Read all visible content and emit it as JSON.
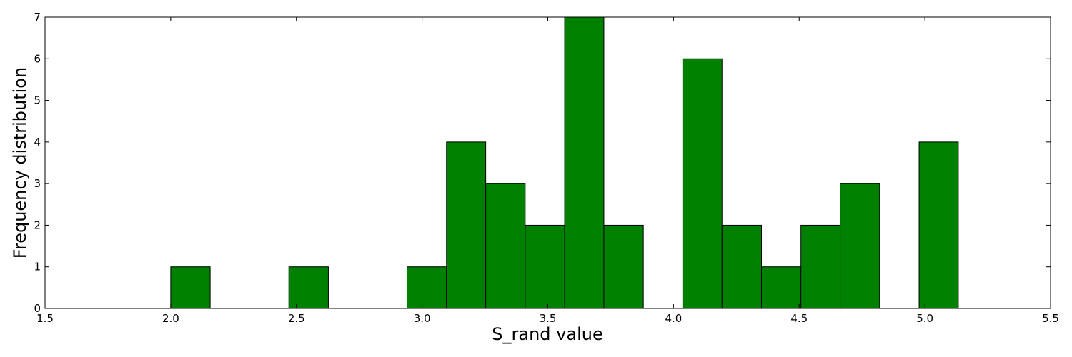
{
  "chart_data": {
    "type": "bar",
    "title": "",
    "xlabel": "S_rand value",
    "ylabel": "Frequency distribution",
    "xlim": [
      1.5,
      5.5
    ],
    "ylim": [
      0,
      7
    ],
    "x_ticks": [
      "1.5",
      "2.0",
      "2.5",
      "3.0",
      "3.5",
      "4.0",
      "4.5",
      "5.0",
      "5.5"
    ],
    "y_ticks": [
      "0",
      "1",
      "2",
      "3",
      "4",
      "5",
      "6",
      "7"
    ],
    "bar_color": "#008000",
    "edge_color": "#000000",
    "grid": false,
    "legend": "none",
    "bins": [
      {
        "start": 2.0,
        "end": 2.157,
        "count": 1
      },
      {
        "start": 2.157,
        "end": 2.313,
        "count": 0
      },
      {
        "start": 2.313,
        "end": 2.47,
        "count": 0
      },
      {
        "start": 2.47,
        "end": 2.627,
        "count": 1
      },
      {
        "start": 2.627,
        "end": 2.783,
        "count": 0
      },
      {
        "start": 2.783,
        "end": 2.94,
        "count": 0
      },
      {
        "start": 2.94,
        "end": 3.097,
        "count": 1
      },
      {
        "start": 3.097,
        "end": 3.253,
        "count": 4
      },
      {
        "start": 3.253,
        "end": 3.41,
        "count": 3
      },
      {
        "start": 3.41,
        "end": 3.567,
        "count": 2
      },
      {
        "start": 3.567,
        "end": 3.723,
        "count": 7
      },
      {
        "start": 3.723,
        "end": 3.88,
        "count": 2
      },
      {
        "start": 3.88,
        "end": 4.037,
        "count": 0
      },
      {
        "start": 4.037,
        "end": 4.193,
        "count": 6
      },
      {
        "start": 4.193,
        "end": 4.35,
        "count": 2
      },
      {
        "start": 4.35,
        "end": 4.507,
        "count": 1
      },
      {
        "start": 4.507,
        "end": 4.663,
        "count": 2
      },
      {
        "start": 4.663,
        "end": 4.82,
        "count": 3
      },
      {
        "start": 4.82,
        "end": 4.977,
        "count": 0
      },
      {
        "start": 4.977,
        "end": 5.133,
        "count": 4
      }
    ]
  }
}
